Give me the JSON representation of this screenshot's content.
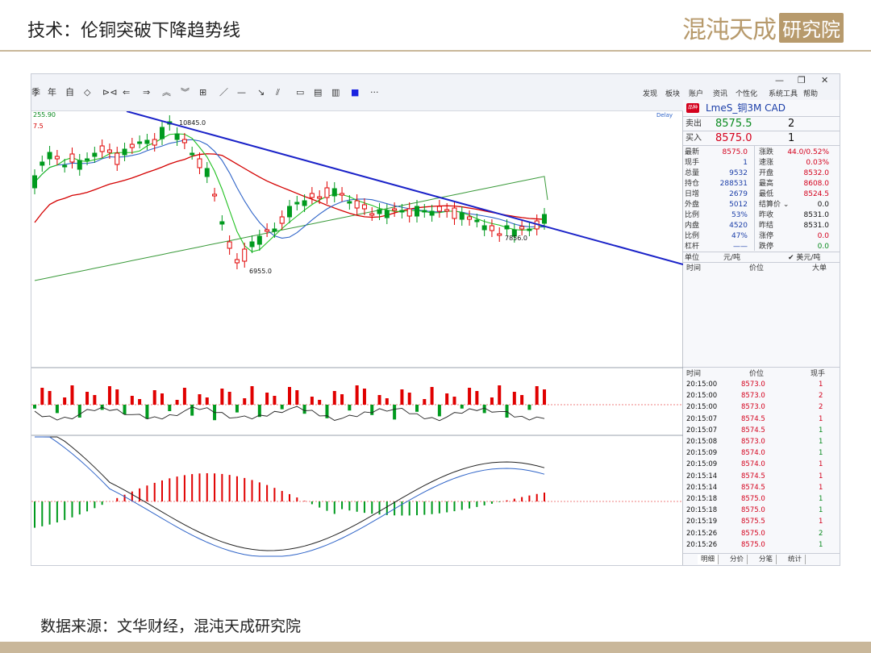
{
  "slide": {
    "title": "技术：伦铜突破下降趋势线",
    "logo_main": "混沌天成",
    "logo_box": "研究院",
    "source": "数据来源：文华财经，混沌天成研究院"
  },
  "app": {
    "toolbar_left": [
      "季",
      "年",
      "自",
      "◇",
      "⊳⊲",
      "⇐",
      "⇒",
      "︽",
      "︾",
      "⊞",
      "／",
      "—",
      "↘",
      "⫽",
      "▭",
      "▤",
      "▥",
      "■",
      "···"
    ],
    "menu": [
      "发现",
      "板块",
      "账户",
      "资讯",
      "个性化",
      "系统工具",
      "帮助"
    ],
    "window_buttons": [
      "—",
      "❐",
      "✕"
    ],
    "chart_labels": {
      "top_left_price": "255.90",
      "top_left_price2": "7.5",
      "delay": "Delay",
      "high_label": "10845.0",
      "low_label": "6955.0",
      "low2_label": "7856.0"
    }
  },
  "quote": {
    "badge": "品种",
    "contract": "LmeS_铜3M CAD",
    "sell_label": "卖出",
    "sell_price": "8575.5",
    "sell_qty": "2",
    "buy_label": "买入",
    "buy_price": "8575.0",
    "buy_qty": "1",
    "rows": [
      {
        "l1": "最新",
        "v1": "8575.0",
        "c1": "red",
        "l2": "涨跌",
        "v2": "44.0/0.52%",
        "c2": "red"
      },
      {
        "l1": "现手",
        "v1": "1",
        "c1": "blu",
        "l2": "速涨",
        "v2": "0.03%",
        "c2": "red"
      },
      {
        "l1": "总量",
        "v1": "9532",
        "c1": "blu",
        "l2": "开盘",
        "v2": "8532.0",
        "c2": "red"
      },
      {
        "l1": "持仓",
        "v1": "288531",
        "c1": "blu",
        "l2": "最高",
        "v2": "8608.0",
        "c2": "red"
      },
      {
        "l1": "日增",
        "v1": "2679",
        "c1": "blu",
        "l2": "最低",
        "v2": "8524.5",
        "c2": "red"
      },
      {
        "l1": "外盘",
        "v1": "5012",
        "c1": "blu",
        "l2": "结算价 ⌄",
        "v2": "0.0",
        "c2": "blk"
      },
      {
        "l1": "比例",
        "v1": "53%",
        "c1": "blu",
        "l2": "昨收",
        "v2": "8531.0",
        "c2": "blk"
      },
      {
        "l1": "内盘",
        "v1": "4520",
        "c1": "blu",
        "l2": "昨结",
        "v2": "8531.0",
        "c2": "blk"
      },
      {
        "l1": "比例",
        "v1": "47%",
        "c1": "blu",
        "l2": "涨停",
        "v2": "0.0",
        "c2": "red"
      },
      {
        "l1": "杠杆",
        "v1": "——",
        "c1": "blu",
        "l2": "跌停",
        "v2": "0.0",
        "c2": "grn"
      }
    ],
    "unit_label": "单位",
    "unit_cny": "元/吨",
    "unit_usd": "✔ 美元/吨",
    "tick_headers_top": [
      "时间",
      "价位",
      "大单"
    ],
    "tick_headers": [
      "时间",
      "价位",
      "现手"
    ],
    "ticks": [
      {
        "t": "20:15:00",
        "p": "8573.0",
        "q": "1",
        "qc": "red"
      },
      {
        "t": "20:15:00",
        "p": "8573.0",
        "q": "2",
        "qc": "red"
      },
      {
        "t": "20:15:00",
        "p": "8573.0",
        "q": "2",
        "qc": "red"
      },
      {
        "t": "20:15:07",
        "p": "8574.5",
        "q": "1",
        "qc": "red"
      },
      {
        "t": "20:15:07",
        "p": "8574.5",
        "q": "1",
        "qc": "grn"
      },
      {
        "t": "20:15:08",
        "p": "8573.0",
        "q": "1",
        "qc": "grn"
      },
      {
        "t": "20:15:09",
        "p": "8574.0",
        "q": "1",
        "qc": "grn"
      },
      {
        "t": "20:15:09",
        "p": "8574.0",
        "q": "1",
        "qc": "red"
      },
      {
        "t": "20:15:14",
        "p": "8574.5",
        "q": "1",
        "qc": "red"
      },
      {
        "t": "20:15:14",
        "p": "8574.5",
        "q": "1",
        "qc": "red"
      },
      {
        "t": "20:15:18",
        "p": "8575.0",
        "q": "1",
        "qc": "grn"
      },
      {
        "t": "20:15:18",
        "p": "8575.0",
        "q": "1",
        "qc": "grn"
      },
      {
        "t": "20:15:19",
        "p": "8575.5",
        "q": "1",
        "qc": "red"
      },
      {
        "t": "20:15:26",
        "p": "8575.0",
        "q": "2",
        "qc": "grn"
      },
      {
        "t": "20:15:26",
        "p": "8575.0",
        "q": "1",
        "qc": "grn"
      }
    ],
    "tabs": [
      "明细",
      "分价",
      "分笔",
      "统计"
    ]
  },
  "colors": {
    "up": "#e00000",
    "down": "#009a1e",
    "trendline": "#1a22c8",
    "ma_red": "#d40000",
    "ma_blue": "#2f64c8",
    "ma_green": "#20c020",
    "ma_long": "#3a9a3a"
  }
}
